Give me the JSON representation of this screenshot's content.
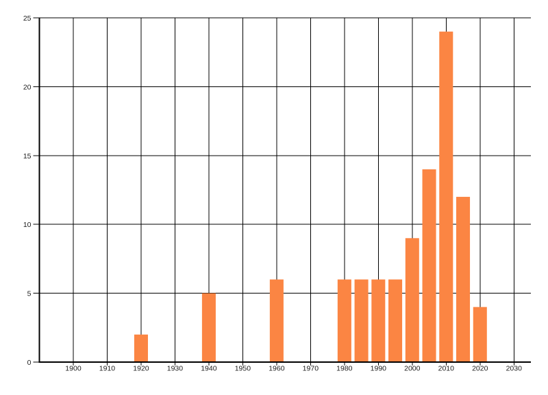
{
  "chart_data": {
    "type": "bar",
    "title": "",
    "xlabel": "",
    "ylabel": "",
    "x": [
      1920,
      1940,
      1960,
      1980,
      1985,
      1990,
      1995,
      2000,
      2005,
      2010,
      2015,
      2020
    ],
    "values": [
      2,
      5,
      6,
      6,
      6,
      6,
      6,
      9,
      14,
      24,
      12,
      4
    ],
    "bar_width_years": 4.05,
    "xlim": [
      1890,
      2035
    ],
    "ylim": [
      0,
      25
    ],
    "x_ticks": [
      1900,
      1910,
      1920,
      1930,
      1940,
      1950,
      1960,
      1970,
      1980,
      1990,
      2000,
      2010,
      2020,
      2030
    ],
    "y_ticks": [
      0,
      5,
      10,
      15,
      20,
      25
    ],
    "grid": true,
    "legend": "none",
    "colors": {
      "bar": "#FB8543",
      "grid": "#000000",
      "axis": "#000000",
      "background": "#FFFFFF",
      "tick_label": "#1B1B1B"
    }
  }
}
